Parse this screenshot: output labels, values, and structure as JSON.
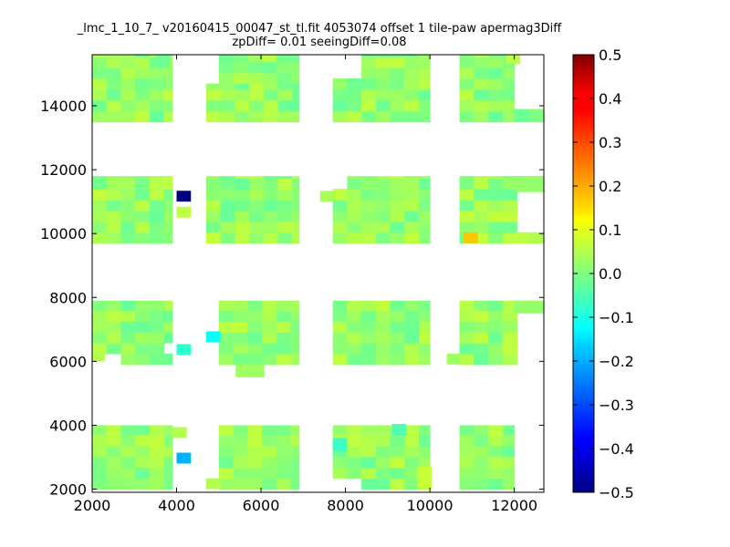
{
  "title_line1": "_lmc_1_10_7_ v20160415_00047_st_tl.fit 4053074 offset 1 tile-paw apermag3Diff",
  "title_line2": "zpDiff= 0.01 seeingDiff=0.08",
  "chart_data": {
    "type": "heatmap",
    "colormap": "jet",
    "xlim": [
      2000,
      12700
    ],
    "ylim": [
      1900,
      15600
    ],
    "x_ticks": [
      2000,
      4000,
      6000,
      8000,
      10000,
      12000
    ],
    "y_ticks": [
      2000,
      4000,
      6000,
      8000,
      10000,
      12000,
      14000
    ],
    "x_tick_labels": [
      "2000",
      "4000",
      "6000",
      "8000",
      "10000",
      "12000"
    ],
    "y_tick_labels": [
      "2000",
      "4000",
      "6000",
      "8000",
      "10000",
      "12000",
      "14000"
    ],
    "colorbar": {
      "range": [
        -0.5,
        0.5
      ],
      "ticks": [
        0.5,
        0.4,
        0.3,
        0.2,
        0.1,
        0.0,
        -0.1,
        -0.2,
        -0.3,
        -0.4,
        -0.5
      ],
      "tick_labels": [
        "0.5",
        "0.4",
        "0.3",
        "0.2",
        "0.1",
        "0.0",
        "−0.1",
        "−0.2",
        "−0.3",
        "−0.4",
        "−0.5"
      ]
    },
    "cell_size": [
      340,
      340
    ],
    "default_value": 0.02,
    "blocks": [
      {
        "x0": 2000,
        "x1": 3900,
        "y0": 13500,
        "y1": 15600
      },
      {
        "x0": 4700,
        "x1": 6900,
        "y0": 13500,
        "y1": 14700
      },
      {
        "x0": 5000,
        "x1": 6900,
        "y0": 14700,
        "y1": 15600
      },
      {
        "x0": 7700,
        "x1": 10000,
        "y0": 13500,
        "y1": 15600
      },
      {
        "x0": 10700,
        "x1": 12000,
        "y0": 13500,
        "y1": 15600
      },
      {
        "x0": 12000,
        "x1": 12700,
        "y0": 13500,
        "y1": 13900
      },
      {
        "x0": 2000,
        "x1": 3900,
        "y0": 9700,
        "y1": 11800
      },
      {
        "x0": 4700,
        "x1": 6900,
        "y0": 9700,
        "y1": 11800
      },
      {
        "x0": 7700,
        "x1": 10000,
        "y0": 9700,
        "y1": 11800
      },
      {
        "x0": 10700,
        "x1": 12700,
        "y0": 9700,
        "y1": 11800
      },
      {
        "x0": 2000,
        "x1": 3900,
        "y0": 5900,
        "y1": 7900
      },
      {
        "x0": 5000,
        "x1": 6900,
        "y0": 5900,
        "y1": 7900
      },
      {
        "x0": 7700,
        "x1": 10000,
        "y0": 5900,
        "y1": 7900
      },
      {
        "x0": 10700,
        "x1": 12700,
        "y0": 5900,
        "y1": 7900
      },
      {
        "x0": 2000,
        "x1": 3900,
        "y0": 2000,
        "y1": 4000
      },
      {
        "x0": 5000,
        "x1": 6900,
        "y0": 2000,
        "y1": 4000
      },
      {
        "x0": 7700,
        "x1": 10000,
        "y0": 2000,
        "y1": 4000
      },
      {
        "x0": 10700,
        "x1": 12000,
        "y0": 2000,
        "y1": 4000
      }
    ],
    "holes": [
      {
        "x0": 12000,
        "x1": 12700,
        "y0": 14000,
        "y1": 15600
      },
      {
        "x0": 12000,
        "x1": 12700,
        "y0": 10000,
        "y1": 11300
      },
      {
        "x0": 12000,
        "x1": 12700,
        "y0": 5900,
        "y1": 7500
      },
      {
        "x0": 7700,
        "x1": 8100,
        "y0": 2000,
        "y1": 2300
      },
      {
        "x0": 7700,
        "x1": 8000,
        "y0": 11300,
        "y1": 11800
      },
      {
        "x0": 3500,
        "x1": 3900,
        "y0": 6100,
        "y1": 6500
      },
      {
        "x0": 2000,
        "x1": 2500,
        "y0": 5900,
        "y1": 6200
      },
      {
        "x0": 7700,
        "x1": 8200,
        "y0": 14800,
        "y1": 15600
      },
      {
        "x0": 3900,
        "x1": 4700,
        "y0": 13500,
        "y1": 15600
      }
    ],
    "extra_cells": [
      {
        "x": 4000,
        "y": 11000,
        "w": 340,
        "h": 340,
        "value": -0.5
      },
      {
        "x": 4000,
        "y": 10500,
        "w": 340,
        "h": 340,
        "value": 0.06
      },
      {
        "x": 4000,
        "y": 6200,
        "w": 340,
        "h": 340,
        "value": -0.08
      },
      {
        "x": 4700,
        "y": 6600,
        "w": 340,
        "h": 340,
        "value": -0.12
      },
      {
        "x": 4000,
        "y": 2800,
        "w": 340,
        "h": 340,
        "value": -0.2
      },
      {
        "x": 4700,
        "y": 9700,
        "w": 340,
        "h": 340,
        "value": 0.07
      },
      {
        "x": 4700,
        "y": 2000,
        "w": 340,
        "h": 340,
        "value": 0.05
      },
      {
        "x": 7400,
        "y": 11000,
        "w": 340,
        "h": 340,
        "value": 0.04
      },
      {
        "x": 5400,
        "y": 5500,
        "w": 680,
        "h": 400,
        "value": 0.03
      },
      {
        "x": 10400,
        "y": 5900,
        "w": 300,
        "h": 340,
        "value": 0.03
      },
      {
        "x": 10800,
        "y": 9700,
        "w": 340,
        "h": 340,
        "value": 0.18
      },
      {
        "x": 2000,
        "y": 6000,
        "w": 300,
        "h": 340,
        "value": 0.05
      },
      {
        "x": 7700,
        "y": 3200,
        "w": 340,
        "h": 400,
        "value": -0.07
      },
      {
        "x": 9100,
        "y": 3700,
        "w": 340,
        "h": 340,
        "value": -0.05
      },
      {
        "x": 3900,
        "y": 3600,
        "w": 340,
        "h": 340,
        "value": 0.05
      },
      {
        "x": 11800,
        "y": 15300,
        "w": 340,
        "h": 300,
        "value": 0.06
      },
      {
        "x": 11400,
        "y": 3600,
        "w": 340,
        "h": 340,
        "value": 0.06
      },
      {
        "x": 9700,
        "y": 2000,
        "w": 340,
        "h": 700,
        "value": 0.07
      },
      {
        "x": 12000,
        "y": 9700,
        "w": 340,
        "h": 340,
        "value": 0.06
      },
      {
        "x": 12000,
        "y": 7500,
        "w": 700,
        "h": 400,
        "value": 0.02
      },
      {
        "x": 12000,
        "y": 11300,
        "w": 700,
        "h": 500,
        "value": 0.02
      },
      {
        "x": 3500,
        "y": 15200,
        "w": 340,
        "h": 400,
        "value": -0.02
      }
    ]
  }
}
